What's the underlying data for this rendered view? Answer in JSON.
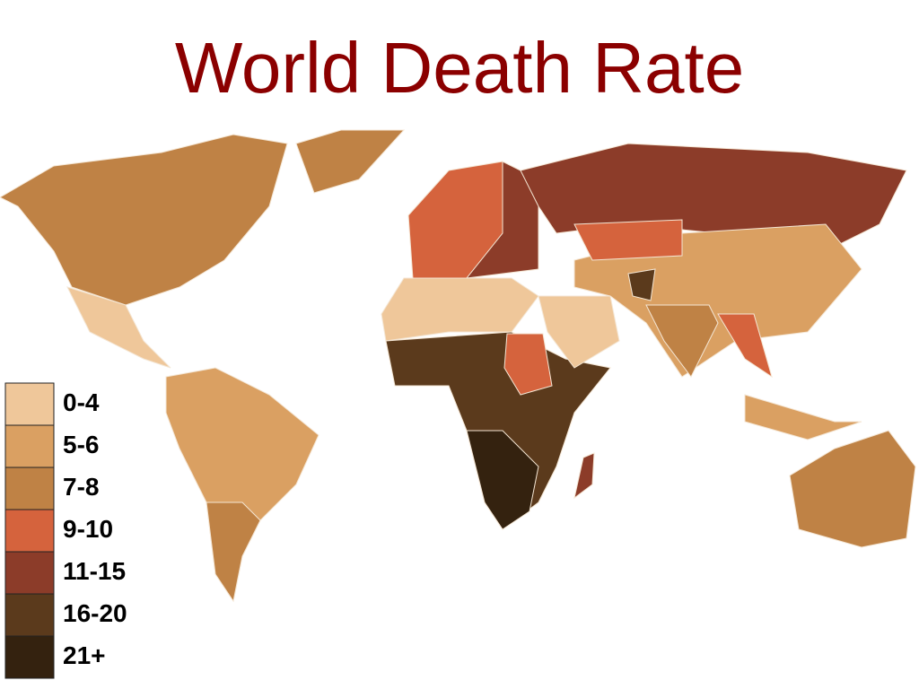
{
  "title": "World Death Rate",
  "legend": [
    {
      "label": "0-4",
      "color": "#efc79a"
    },
    {
      "label": "5-6",
      "color": "#daa062"
    },
    {
      "label": "7-8",
      "color": "#bf8245"
    },
    {
      "label": "9-10",
      "color": "#d5633d"
    },
    {
      "label": "11-15",
      "color": "#8c3c29"
    },
    {
      "label": "16-20",
      "color": "#5b3a1c"
    },
    {
      "label": "21+",
      "color": "#34220f"
    }
  ]
}
